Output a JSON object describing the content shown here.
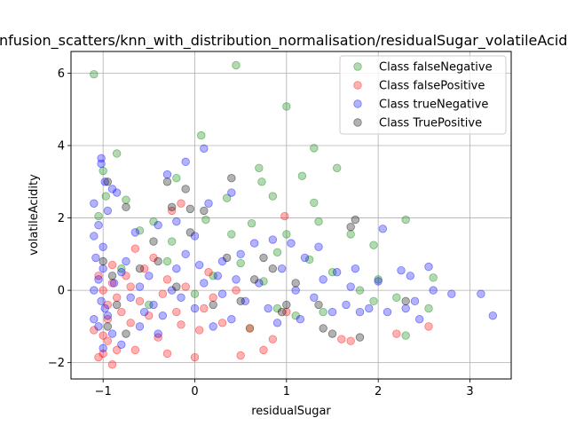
{
  "chart_data": {
    "type": "scatter",
    "title": "confusion_scatters/knn_with_distribution_normalisation/residualSugar_volatileAcidity",
    "xlabel": "residualSugar",
    "ylabel": "volatileAcidity",
    "xlim": [
      -1.35,
      3.45
    ],
    "ylim": [
      -2.45,
      6.6
    ],
    "xticks": [
      -1,
      0,
      1,
      2,
      3
    ],
    "yticks": [
      -2,
      0,
      2,
      4,
      6
    ],
    "grid": true,
    "legend_position": "top-right",
    "series": [
      {
        "name": "Class falseNegative",
        "color": "#008000",
        "points": [
          [
            -1.1,
            5.97
          ],
          [
            0.45,
            6.22
          ],
          [
            1.0,
            5.08
          ],
          [
            0.07,
            4.28
          ],
          [
            1.3,
            3.93
          ],
          [
            -0.85,
            3.78
          ],
          [
            0.7,
            3.38
          ],
          [
            1.17,
            3.16
          ],
          [
            1.55,
            3.38
          ],
          [
            0.73,
            3.0
          ],
          [
            -1.0,
            3.3
          ],
          [
            -0.97,
            2.6
          ],
          [
            0.35,
            2.55
          ],
          [
            0.85,
            2.6
          ],
          [
            1.3,
            2.42
          ],
          [
            -0.75,
            2.5
          ],
          [
            -0.2,
            3.1
          ],
          [
            -0.45,
            1.9
          ],
          [
            1.35,
            1.9
          ],
          [
            2.3,
            1.95
          ],
          [
            -1.05,
            2.05
          ],
          [
            0.12,
            1.95
          ],
          [
            0.62,
            1.85
          ],
          [
            1.0,
            1.55
          ],
          [
            -0.6,
            1.65
          ],
          [
            0.4,
            1.55
          ],
          [
            1.7,
            1.55
          ],
          [
            1.95,
            1.25
          ],
          [
            0.9,
            1.05
          ],
          [
            -0.25,
            1.35
          ],
          [
            1.25,
            0.85
          ],
          [
            0.5,
            0.75
          ],
          [
            1.5,
            0.5
          ],
          [
            2.0,
            0.3
          ],
          [
            0.2,
            0.4
          ],
          [
            -0.3,
            0.8
          ],
          [
            1.8,
            0.0
          ],
          [
            2.6,
            0.35
          ],
          [
            2.2,
            -0.2
          ],
          [
            0.9,
            -0.5
          ],
          [
            1.4,
            -0.6
          ],
          [
            2.3,
            -1.25
          ],
          [
            0.6,
            -1.05
          ],
          [
            1.1,
            -0.7
          ],
          [
            -0.5,
            -0.4
          ],
          [
            2.55,
            -0.5
          ],
          [
            0.0,
            -0.1
          ],
          [
            1.95,
            -0.3
          ],
          [
            -0.8,
            0.6
          ],
          [
            0.75,
            0.25
          ]
        ]
      },
      {
        "name": "Class falsePositive",
        "color": "#ff0000",
        "points": [
          [
            -1.0,
            -1.75
          ],
          [
            -0.9,
            -2.05
          ],
          [
            -1.05,
            -1.85
          ],
          [
            -0.85,
            -1.65
          ],
          [
            -0.95,
            -1.4
          ],
          [
            -0.65,
            -1.65
          ],
          [
            -0.3,
            -1.75
          ],
          [
            0.0,
            -1.85
          ],
          [
            0.5,
            -1.8
          ],
          [
            0.75,
            -1.65
          ],
          [
            1.6,
            -1.35
          ],
          [
            1.7,
            -1.4
          ],
          [
            2.2,
            -1.2
          ],
          [
            2.55,
            -1.0
          ],
          [
            -0.15,
            -0.95
          ],
          [
            -1.1,
            -1.1
          ],
          [
            -0.7,
            -0.9
          ],
          [
            -0.5,
            -0.7
          ],
          [
            -0.2,
            -0.6
          ],
          [
            0.1,
            -0.5
          ],
          [
            0.3,
            -0.9
          ],
          [
            0.6,
            -1.05
          ],
          [
            1.0,
            -0.6
          ],
          [
            -0.95,
            -0.4
          ],
          [
            -0.85,
            -0.2
          ],
          [
            -1.0,
            0.0
          ],
          [
            -0.9,
            0.2
          ],
          [
            -0.75,
            0.4
          ],
          [
            -0.55,
            0.6
          ],
          [
            -0.3,
            0.3
          ],
          [
            -0.1,
            0.1
          ],
          [
            0.2,
            -0.2
          ],
          [
            0.45,
            0.0
          ],
          [
            -0.25,
            2.2
          ],
          [
            0.98,
            2.05
          ],
          [
            -0.65,
            1.15
          ],
          [
            -0.45,
            0.9
          ],
          [
            -0.9,
            0.7
          ],
          [
            -1.05,
            0.4
          ],
          [
            -0.8,
            -0.6
          ],
          [
            -0.6,
            -0.3
          ],
          [
            0.05,
            -1.1
          ],
          [
            -0.4,
            -1.3
          ],
          [
            0.85,
            -1.35
          ],
          [
            -0.95,
            -0.8
          ],
          [
            -0.7,
            0.1
          ],
          [
            -0.35,
            -0.1
          ],
          [
            0.15,
            0.5
          ],
          [
            -0.15,
            2.4
          ],
          [
            -1.0,
            -1.25
          ]
        ]
      },
      {
        "name": "Class trueNegative",
        "color": "#0000ff",
        "points": [
          [
            -1.02,
            3.65
          ],
          [
            -1.02,
            3.5
          ],
          [
            -0.98,
            3.0
          ],
          [
            -0.9,
            2.8
          ],
          [
            -0.85,
            2.7
          ],
          [
            -0.95,
            2.2
          ],
          [
            -0.3,
            3.2
          ],
          [
            -0.1,
            3.55
          ],
          [
            0.1,
            3.92
          ],
          [
            0.4,
            2.7
          ],
          [
            -1.1,
            2.4
          ],
          [
            -1.05,
            1.8
          ],
          [
            -1.1,
            1.5
          ],
          [
            -1.0,
            1.2
          ],
          [
            -1.08,
            0.9
          ],
          [
            -1.0,
            0.6
          ],
          [
            -1.05,
            0.3
          ],
          [
            -1.1,
            0.0
          ],
          [
            -1.02,
            -0.3
          ],
          [
            -0.98,
            -0.5
          ],
          [
            -1.1,
            -0.8
          ],
          [
            -1.05,
            -1.0
          ],
          [
            -0.9,
            -1.2
          ],
          [
            -0.95,
            -0.7
          ],
          [
            -0.88,
            0.2
          ],
          [
            -0.8,
            0.5
          ],
          [
            -0.75,
            0.8
          ],
          [
            -0.7,
            -0.2
          ],
          [
            -0.6,
            0.1
          ],
          [
            -0.5,
            0.4
          ],
          [
            -0.45,
            -0.4
          ],
          [
            -0.35,
            -0.7
          ],
          [
            -0.25,
            0.0
          ],
          [
            -0.2,
            0.6
          ],
          [
            -0.1,
            1.0
          ],
          [
            0.0,
            1.5
          ],
          [
            0.15,
            2.4
          ],
          [
            0.3,
            0.8
          ],
          [
            0.5,
            1.0
          ],
          [
            0.55,
            -0.3
          ],
          [
            0.7,
            0.2
          ],
          [
            0.8,
            -0.5
          ],
          [
            0.95,
            0.6
          ],
          [
            1.1,
            0.0
          ],
          [
            1.2,
            0.9
          ],
          [
            1.3,
            -0.2
          ],
          [
            1.4,
            0.3
          ],
          [
            1.5,
            -0.6
          ],
          [
            1.55,
            0.5
          ],
          [
            1.65,
            -0.4
          ],
          [
            1.7,
            0.1
          ],
          [
            1.8,
            -0.6
          ],
          [
            1.9,
            -0.5
          ],
          [
            2.05,
            1.7
          ],
          [
            2.1,
            -0.6
          ],
          [
            2.25,
            0.55
          ],
          [
            2.3,
            -0.5
          ],
          [
            2.35,
            0.4
          ],
          [
            2.4,
            -0.3
          ],
          [
            2.55,
            0.65
          ],
          [
            2.6,
            0.0
          ],
          [
            2.8,
            -0.1
          ],
          [
            3.12,
            -0.1
          ],
          [
            3.25,
            -0.7
          ],
          [
            2.45,
            -0.8
          ],
          [
            0.2,
            -1.0
          ],
          [
            0.4,
            -0.8
          ],
          [
            0.0,
            -0.5
          ],
          [
            -0.15,
            -0.2
          ],
          [
            0.1,
            0.2
          ],
          [
            0.25,
            0.4
          ],
          [
            -0.6,
            -1.0
          ],
          [
            -0.4,
            -1.2
          ],
          [
            -0.8,
            -1.5
          ],
          [
            -1.0,
            -1.6
          ],
          [
            0.65,
            1.3
          ],
          [
            0.85,
            1.4
          ],
          [
            1.05,
            1.3
          ],
          [
            1.35,
            1.2
          ],
          [
            -0.2,
            1.9
          ],
          [
            -0.4,
            1.8
          ],
          [
            -0.65,
            1.6
          ],
          [
            0.3,
            -0.1
          ],
          [
            0.45,
            0.3
          ],
          [
            0.9,
            -0.9
          ],
          [
            1.15,
            -0.8
          ],
          [
            1.75,
            0.6
          ],
          [
            2.0,
            0.25
          ],
          [
            -0.55,
            -0.6
          ],
          [
            0.05,
            0.7
          ]
        ]
      },
      {
        "name": "Class TruePositive",
        "color": "#000000",
        "points": [
          [
            -0.95,
            3.0
          ],
          [
            -0.3,
            3.0
          ],
          [
            -0.1,
            2.8
          ],
          [
            0.4,
            3.1
          ],
          [
            -0.75,
            2.3
          ],
          [
            -0.25,
            2.3
          ],
          [
            -0.05,
            2.25
          ],
          [
            0.1,
            2.2
          ],
          [
            1.75,
            1.95
          ],
          [
            1.7,
            1.75
          ],
          [
            -0.45,
            1.35
          ],
          [
            -0.4,
            0.8
          ],
          [
            0.35,
            0.9
          ],
          [
            0.75,
            0.9
          ],
          [
            0.85,
            0.6
          ],
          [
            -1.0,
            0.8
          ],
          [
            -0.9,
            0.4
          ],
          [
            -0.85,
            -0.4
          ],
          [
            -0.75,
            -1.2
          ],
          [
            -0.95,
            -1.0
          ],
          [
            0.2,
            -0.4
          ],
          [
            0.5,
            -0.3
          ],
          [
            1.0,
            -0.4
          ],
          [
            1.35,
            -0.4
          ],
          [
            1.5,
            -1.2
          ],
          [
            1.4,
            -1.05
          ],
          [
            1.8,
            -1.3
          ],
          [
            2.3,
            -0.3
          ],
          [
            0.95,
            -0.6
          ],
          [
            -0.05,
            1.6
          ],
          [
            -0.2,
            0.1
          ],
          [
            0.65,
            0.3
          ],
          [
            -0.6,
            0.6
          ],
          [
            1.1,
            0.2
          ]
        ]
      }
    ]
  }
}
